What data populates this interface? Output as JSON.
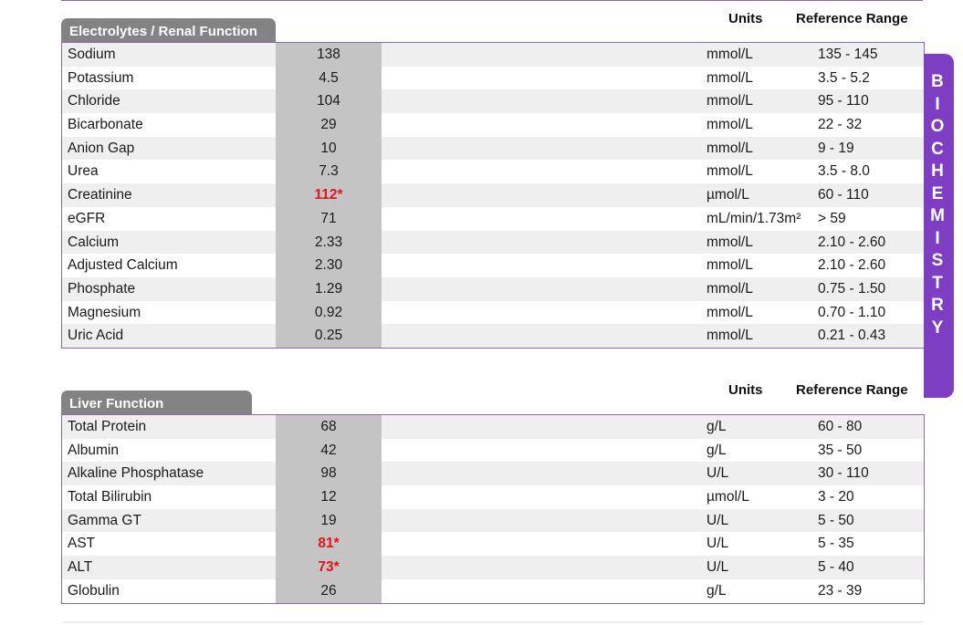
{
  "colors": {
    "accent": "#7d3ec4",
    "tab_gray": "#838383",
    "value_bg": "#c4c4c4",
    "abnormal": "#e3141c"
  },
  "side_tab": {
    "label": "BIOCHEMISTRY",
    "letters": [
      "B",
      "I",
      "O",
      "C",
      "H",
      "E",
      "M",
      "I",
      "S",
      "T",
      "R",
      "Y"
    ]
  },
  "electrolytes": {
    "title": "Electrolytes / Renal Function",
    "units_header": "Units",
    "range_header": "Reference Range",
    "rows": [
      {
        "name": "Sodium",
        "value": "138",
        "unit": "mmol/L",
        "range": "135 - 145",
        "abnormal": false
      },
      {
        "name": "Potassium",
        "value": "4.5",
        "unit": "mmol/L",
        "range": "3.5 - 5.2",
        "abnormal": false
      },
      {
        "name": "Chloride",
        "value": "104",
        "unit": "mmol/L",
        "range": "95 - 110",
        "abnormal": false
      },
      {
        "name": "Bicarbonate",
        "value": "29",
        "unit": "mmol/L",
        "range": "22 - 32",
        "abnormal": false
      },
      {
        "name": "Anion Gap",
        "value": "10",
        "unit": "mmol/L",
        "range": "9 - 19",
        "abnormal": false
      },
      {
        "name": "Urea",
        "value": "7.3",
        "unit": "mmol/L",
        "range": "3.5 - 8.0",
        "abnormal": false
      },
      {
        "name": "Creatinine",
        "value": "112*",
        "unit": "µmol/L",
        "range": "60 - 110",
        "abnormal": true
      },
      {
        "name": "eGFR",
        "value": "71",
        "unit": "mL/min/1.73m²",
        "range": "> 59",
        "abnormal": false
      },
      {
        "name": "Calcium",
        "value": "2.33",
        "unit": "mmol/L",
        "range": "2.10 - 2.60",
        "abnormal": false
      },
      {
        "name": "Adjusted Calcium",
        "value": "2.30",
        "unit": "mmol/L",
        "range": "2.10 - 2.60",
        "abnormal": false
      },
      {
        "name": "Phosphate",
        "value": "1.29",
        "unit": "mmol/L",
        "range": "0.75 - 1.50",
        "abnormal": false
      },
      {
        "name": "Magnesium",
        "value": "0.92",
        "unit": "mmol/L",
        "range": "0.70 - 1.10",
        "abnormal": false
      },
      {
        "name": "Uric Acid",
        "value": "0.25",
        "unit": "mmol/L",
        "range": "0.21 - 0.43",
        "abnormal": false
      }
    ]
  },
  "liver": {
    "title": "Liver Function",
    "units_header": "Units",
    "range_header": "Reference Range",
    "rows": [
      {
        "name": "Total Protein",
        "value": "68",
        "unit": "g/L",
        "range": "60 - 80",
        "abnormal": false
      },
      {
        "name": "Albumin",
        "value": "42",
        "unit": "g/L",
        "range": "35 - 50",
        "abnormal": false
      },
      {
        "name": "Alkaline Phosphatase",
        "value": "98",
        "unit": "U/L",
        "range": "30 - 110",
        "abnormal": false
      },
      {
        "name": "Total Bilirubin",
        "value": "12",
        "unit": "µmol/L",
        "range": "3 - 20",
        "abnormal": false
      },
      {
        "name": "Gamma GT",
        "value": "19",
        "unit": "U/L",
        "range": "5 - 50",
        "abnormal": false
      },
      {
        "name": "AST",
        "value": "81*",
        "unit": "U/L",
        "range": "5 - 35",
        "abnormal": true
      },
      {
        "name": "ALT",
        "value": "73*",
        "unit": "U/L",
        "range": "5 - 40",
        "abnormal": true
      },
      {
        "name": "Globulin",
        "value": "26",
        "unit": "g/L",
        "range": "23 - 39",
        "abnormal": false
      }
    ]
  }
}
